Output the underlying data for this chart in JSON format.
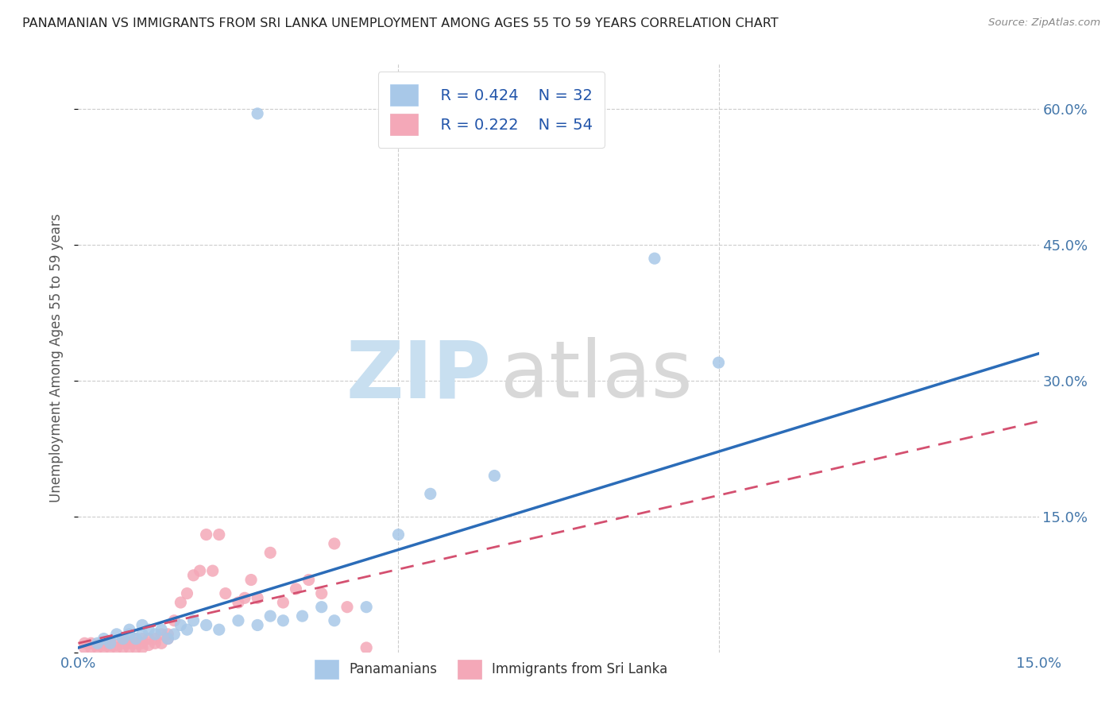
{
  "title": "PANAMANIAN VS IMMIGRANTS FROM SRI LANKA UNEMPLOYMENT AMONG AGES 55 TO 59 YEARS CORRELATION CHART",
  "source": "Source: ZipAtlas.com",
  "ylabel": "Unemployment Among Ages 55 to 59 years",
  "xlim": [
    0.0,
    0.15
  ],
  "ylim": [
    0.0,
    0.65
  ],
  "blue_color": "#a8c8e8",
  "pink_color": "#f4a8b8",
  "blue_line_color": "#2b6cb8",
  "pink_line_color": "#d45070",
  "legend_R_blue": "R = 0.424",
  "legend_N_blue": "N = 32",
  "legend_R_pink": "R = 0.222",
  "legend_N_pink": "N = 54",
  "legend_label_blue": "Panamanians",
  "legend_label_pink": "Immigrants from Sri Lanka",
  "blue_scatter_x": [
    0.003,
    0.004,
    0.005,
    0.006,
    0.007,
    0.008,
    0.008,
    0.009,
    0.01,
    0.01,
    0.011,
    0.012,
    0.013,
    0.014,
    0.015,
    0.016,
    0.017,
    0.018,
    0.02,
    0.022,
    0.025,
    0.028,
    0.03,
    0.032,
    0.035,
    0.038,
    0.04,
    0.045,
    0.05,
    0.055,
    0.065,
    0.1
  ],
  "blue_scatter_y": [
    0.01,
    0.015,
    0.01,
    0.02,
    0.015,
    0.02,
    0.025,
    0.015,
    0.02,
    0.03,
    0.025,
    0.02,
    0.025,
    0.015,
    0.02,
    0.03,
    0.025,
    0.035,
    0.03,
    0.025,
    0.035,
    0.03,
    0.04,
    0.035,
    0.04,
    0.05,
    0.035,
    0.05,
    0.13,
    0.175,
    0.195,
    0.32
  ],
  "pink_scatter_x": [
    0.001,
    0.001,
    0.002,
    0.002,
    0.003,
    0.003,
    0.004,
    0.004,
    0.005,
    0.005,
    0.005,
    0.006,
    0.006,
    0.007,
    0.007,
    0.007,
    0.008,
    0.008,
    0.008,
    0.009,
    0.009,
    0.009,
    0.01,
    0.01,
    0.01,
    0.011,
    0.011,
    0.012,
    0.012,
    0.013,
    0.013,
    0.014,
    0.014,
    0.015,
    0.016,
    0.017,
    0.018,
    0.019,
    0.02,
    0.021,
    0.022,
    0.023,
    0.025,
    0.026,
    0.027,
    0.028,
    0.03,
    0.032,
    0.034,
    0.036,
    0.038,
    0.04,
    0.042,
    0.045
  ],
  "pink_scatter_y": [
    0.005,
    0.01,
    0.005,
    0.01,
    0.005,
    0.008,
    0.005,
    0.008,
    0.005,
    0.008,
    0.012,
    0.005,
    0.008,
    0.005,
    0.01,
    0.015,
    0.005,
    0.01,
    0.012,
    0.005,
    0.01,
    0.015,
    0.005,
    0.01,
    0.015,
    0.008,
    0.015,
    0.01,
    0.015,
    0.01,
    0.02,
    0.015,
    0.02,
    0.035,
    0.055,
    0.065,
    0.085,
    0.09,
    0.13,
    0.09,
    0.13,
    0.065,
    0.055,
    0.06,
    0.08,
    0.06,
    0.11,
    0.055,
    0.07,
    0.08,
    0.065,
    0.12,
    0.05,
    0.005
  ],
  "blue_outlier_x": [
    0.028
  ],
  "blue_outlier_y": [
    0.595
  ],
  "blue_high_x": [
    0.09
  ],
  "blue_high_y": [
    0.435
  ],
  "blue_trend_x": [
    0.0,
    0.15
  ],
  "blue_trend_y": [
    0.005,
    0.33
  ],
  "pink_trend_x": [
    0.0,
    0.15
  ],
  "pink_trend_y": [
    0.01,
    0.255
  ]
}
